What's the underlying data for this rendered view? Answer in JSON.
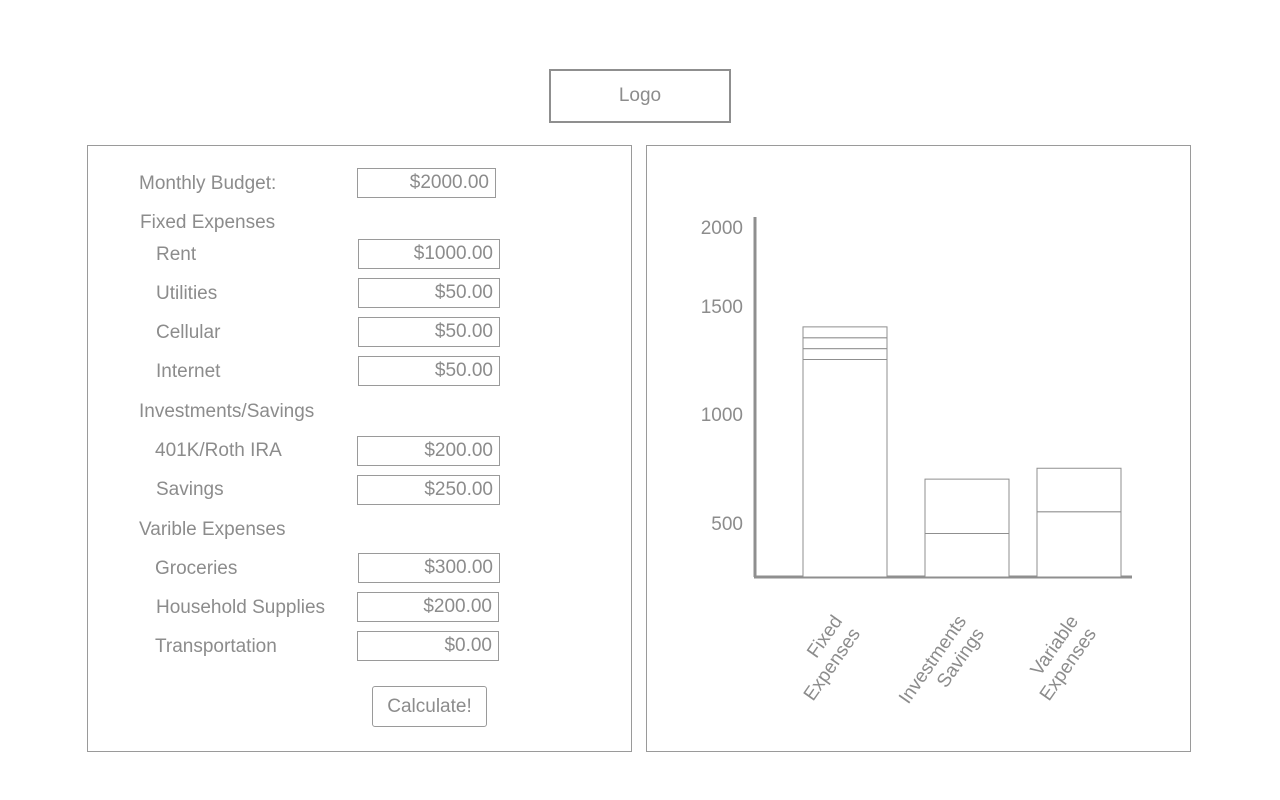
{
  "logo": {
    "text": "Logo"
  },
  "form": {
    "monthly_budget": {
      "label": "Monthly Budget:",
      "value": "$2000.00"
    },
    "fixed_expenses": {
      "heading": "Fixed Expenses",
      "items": [
        {
          "label": "Rent",
          "value": "$1000.00"
        },
        {
          "label": "Utilities",
          "value": "$50.00"
        },
        {
          "label": "Cellular",
          "value": "$50.00"
        },
        {
          "label": "Internet",
          "value": "$50.00"
        }
      ]
    },
    "investments_savings": {
      "heading": "Investments/Savings",
      "items": [
        {
          "label": "401K/Roth IRA",
          "value": "$200.00"
        },
        {
          "label": "Savings",
          "value": "$250.00"
        }
      ]
    },
    "variable_expenses": {
      "heading": "Varible Expenses",
      "items": [
        {
          "label": "Groceries",
          "value": "$300.00"
        },
        {
          "label": "Household Supplies",
          "value": "$200.00"
        },
        {
          "label": "Transportation",
          "value": "$0.00"
        }
      ]
    },
    "calculate_label": "Calculate!"
  },
  "chart_data": {
    "type": "bar",
    "stacked": true,
    "categories": [
      [
        "Fixed",
        "Expenses"
      ],
      [
        "Investments",
        "Savings"
      ],
      [
        "Variable",
        "Expenses"
      ]
    ],
    "segments": [
      [
        1000,
        50,
        50,
        50
      ],
      [
        200,
        250
      ],
      [
        300,
        200,
        0
      ]
    ],
    "y_ticks": [
      2000,
      1500,
      1000,
      500
    ],
    "ylim": [
      0,
      2000
    ],
    "grid": false,
    "colors": {
      "stroke": "#8f8f8f",
      "axis": "#8f8f8f",
      "text": "#8c8c8c"
    }
  }
}
